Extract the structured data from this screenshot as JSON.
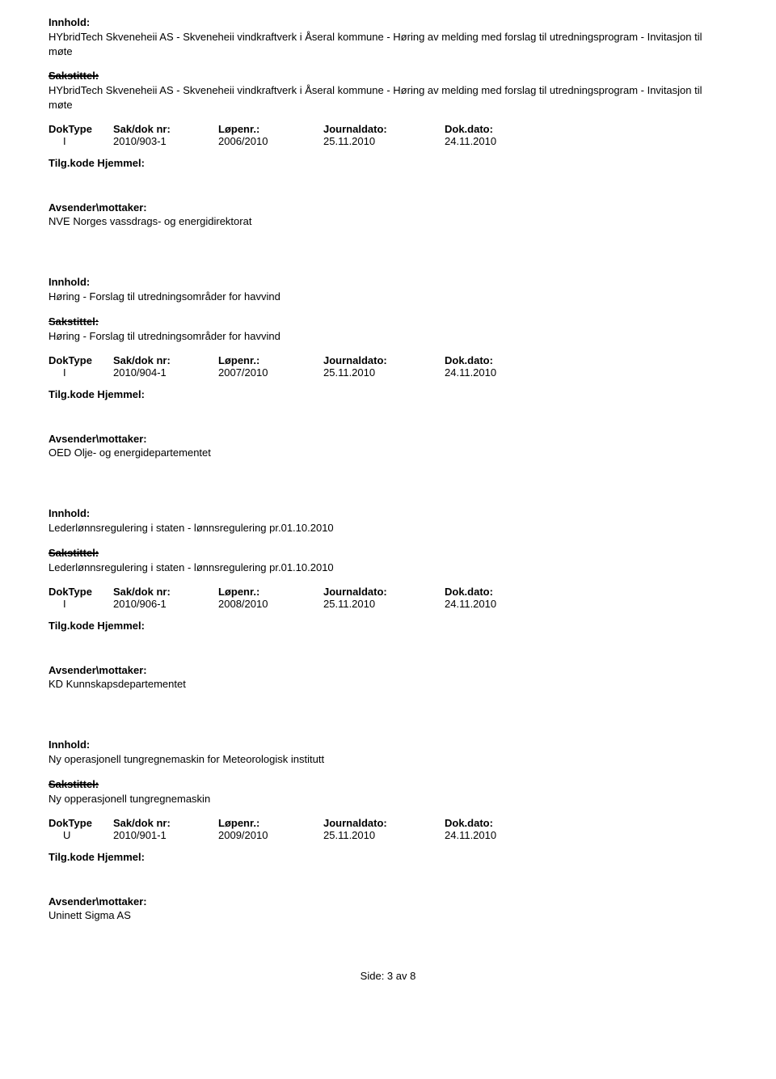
{
  "labels": {
    "innhold": "Innhold:",
    "sakstittel": "Sakstittel:",
    "tilgkode": "Tilg.kode Hjemmel:",
    "avsender": "Avsender\\mottaker:",
    "doktype": "DokType",
    "sakdok": "Sak/dok nr:",
    "lopenr": "Løpenr.:",
    "journaldato": "Journaldato:",
    "dokdato": "Dok.dato:"
  },
  "records": [
    {
      "innhold": "HYbridTech Skveneheii AS - Skveneheii vindkraftverk i Åseral kommune - Høring av melding med forslag til utredningsprogram - Invitasjon til møte",
      "sakstittel": "HYbridTech Skveneheii AS - Skveneheii vindkraftverk i Åseral kommune - Høring av melding med forslag til utredningsprogram - Invitasjon til møte",
      "doktype": "I",
      "sakdok": "2010/903-1",
      "lopenr": "2006/2010",
      "journaldato": "25.11.2010",
      "dokdato": "24.11.2010",
      "avsender": "NVE Norges vassdrags- og energidirektorat"
    },
    {
      "innhold": "Høring - Forslag til utredningsområder for havvind",
      "sakstittel": "Høring - Forslag til utredningsområder for havvind",
      "doktype": "I",
      "sakdok": "2010/904-1",
      "lopenr": "2007/2010",
      "journaldato": "25.11.2010",
      "dokdato": "24.11.2010",
      "avsender": "OED Olje- og energidepartementet"
    },
    {
      "innhold": "Lederlønnsregulering i staten - lønnsregulering pr.01.10.2010",
      "sakstittel": "Lederlønnsregulering i staten - lønnsregulering pr.01.10.2010",
      "doktype": "I",
      "sakdok": "2010/906-1",
      "lopenr": "2008/2010",
      "journaldato": "25.11.2010",
      "dokdato": "24.11.2010",
      "avsender": "KD Kunnskapsdepartementet"
    },
    {
      "innhold": "Ny operasjonell tungregnemaskin for Meteorologisk institutt",
      "sakstittel": "Ny opperasjonell tungregnemaskin",
      "doktype": "U",
      "sakdok": "2010/901-1",
      "lopenr": "2009/2010",
      "journaldato": "25.11.2010",
      "dokdato": "24.11.2010",
      "avsender": "Uninett Sigma AS"
    }
  ],
  "footer": "Side: 3 av 8"
}
